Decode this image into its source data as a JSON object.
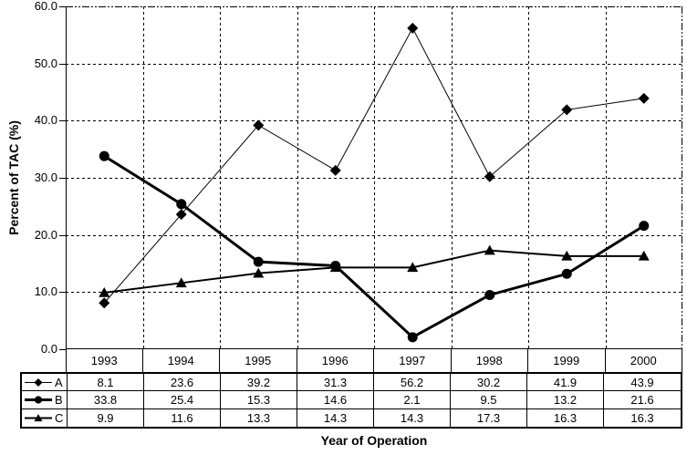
{
  "chart_data": {
    "type": "line",
    "title": "",
    "xlabel": "Year of Operation",
    "ylabel": "Percent of TAC (%)",
    "ylim": [
      0,
      60
    ],
    "ytick_step": 10,
    "ytick_labels": [
      "0.0",
      "10.0",
      "20.0",
      "30.0",
      "40.0",
      "50.0",
      "60.0"
    ],
    "grid": true,
    "legend_position": "table-left",
    "categories": [
      "1993",
      "1994",
      "1995",
      "1996",
      "1997",
      "1998",
      "1999",
      "2000"
    ],
    "series": [
      {
        "name": "A",
        "marker": "diamond",
        "line_width": 1,
        "values": [
          8.1,
          23.6,
          39.2,
          31.3,
          56.2,
          30.2,
          41.9,
          43.9
        ]
      },
      {
        "name": "B",
        "marker": "circle",
        "line_width": 3,
        "values": [
          33.8,
          25.4,
          15.3,
          14.6,
          2.1,
          9.5,
          13.2,
          21.6
        ]
      },
      {
        "name": "C",
        "marker": "triangle",
        "line_width": 2,
        "values": [
          9.9,
          11.6,
          13.3,
          14.3,
          14.3,
          17.3,
          16.3,
          16.3
        ]
      }
    ]
  },
  "colors": {
    "ink": "#000000",
    "background": "#ffffff"
  }
}
